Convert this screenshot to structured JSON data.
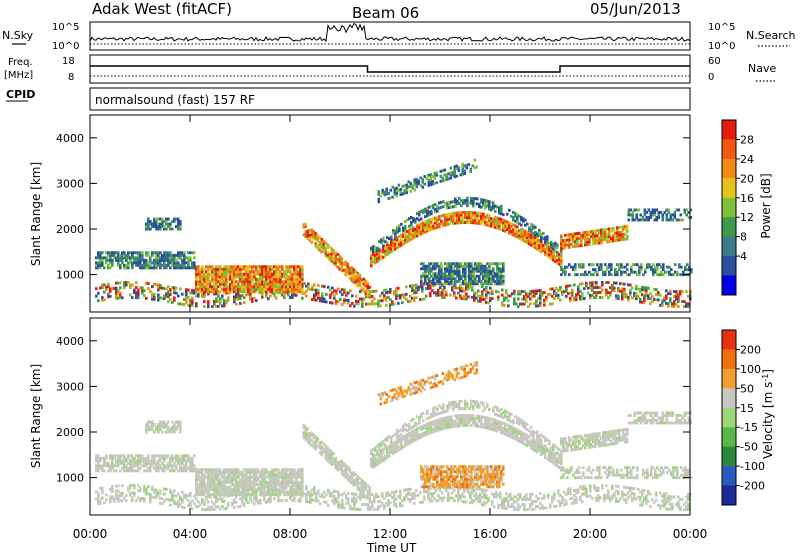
{
  "header": {
    "station": "Adak West (fitACF)",
    "beam": "Beam 06",
    "date": "05/Jun/2013"
  },
  "status_panels": {
    "nsky_label": "N.Sky",
    "nsearch_label": "N.Search",
    "freq_label_line1": "Freq.",
    "freq_label_line2": "[MHz]",
    "nave_label": "Nave",
    "cpid_label": "CPID",
    "cpid_text": "normalsound (fast) 157 RF",
    "nsky_ticks": [
      "10^5",
      "10^0"
    ],
    "nsearch_ticks": [
      "10^5",
      "10^0"
    ],
    "freq_ticks": [
      "18",
      "8"
    ],
    "nave_ticks": [
      "60",
      "0"
    ]
  },
  "x_axis": {
    "label": "Time UT",
    "ticks": [
      "00:00",
      "04:00",
      "08:00",
      "12:00",
      "16:00",
      "20:00",
      "00:00"
    ]
  },
  "power_colorbar": {
    "label": "Power [dB]",
    "ticks": [
      "28",
      "24",
      "20",
      "16",
      "12",
      "8",
      "4"
    ],
    "colors": [
      "#0000e6",
      "#2a4fa0",
      "#3e7a8a",
      "#3e9a4a",
      "#7fc23a",
      "#e8c21a",
      "#f08a12",
      "#f05a10",
      "#e81a0a"
    ]
  },
  "velocity_colorbar": {
    "label": "Velocity [m s",
    "label_sup": "-1",
    "label_close": "]",
    "ticks": [
      "200",
      "100",
      "50",
      "15",
      "-15",
      "-50",
      "-100",
      "-200"
    ],
    "colors": [
      "#1a2a9a",
      "#2a5ac0",
      "#2a8a3a",
      "#5ab84a",
      "#9ad87a",
      "#c8c8c0",
      "#f0a030",
      "#f07010",
      "#e83010"
    ]
  },
  "chart_data": [
    {
      "type": "heatmap",
      "title": "Power",
      "ylabel": "Slant Range [km]",
      "xlabel": "",
      "xlim_hours": [
        0,
        24
      ],
      "ylim": [
        180,
        4500
      ],
      "yticks": [
        1000,
        2000,
        3000,
        4000
      ],
      "ytick_labels": [
        "1000",
        "2000",
        "3000",
        "4000"
      ]
    },
    {
      "type": "heatmap",
      "title": "Velocity",
      "ylabel": "Slant Range [km]",
      "xlabel": "Time UT",
      "xlim_hours": [
        0,
        24
      ],
      "ylim": [
        180,
        4500
      ],
      "yticks": [
        1000,
        2000,
        3000,
        4000
      ],
      "ytick_labels": [
        "1000",
        "2000",
        "3000",
        "4000"
      ]
    }
  ]
}
